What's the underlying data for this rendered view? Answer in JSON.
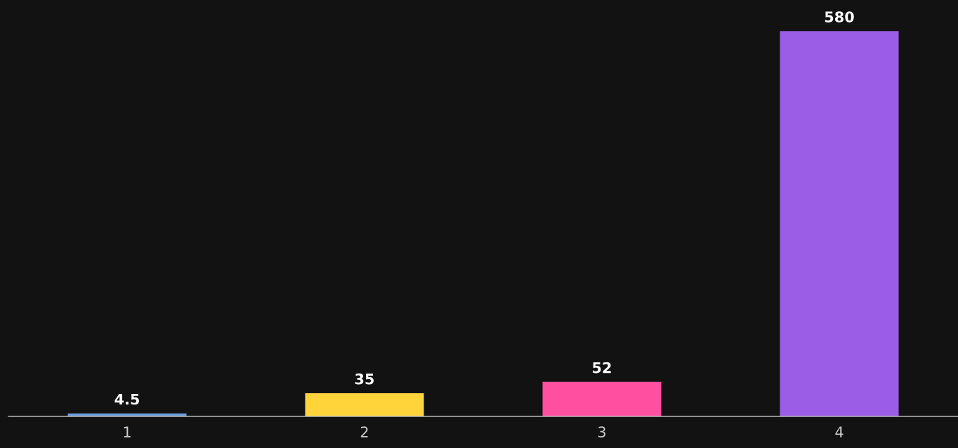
{
  "chart_data": {
    "type": "bar",
    "categories": [
      "1",
      "2",
      "3",
      "4"
    ],
    "values": [
      4.5,
      35,
      52,
      580
    ],
    "colors": [
      "#6a9fd8",
      "#ffd43b",
      "#ff4fa0",
      "#9b5de5"
    ],
    "data_labels": true,
    "tick_labels": "x",
    "grid": false,
    "legend": false
  }
}
